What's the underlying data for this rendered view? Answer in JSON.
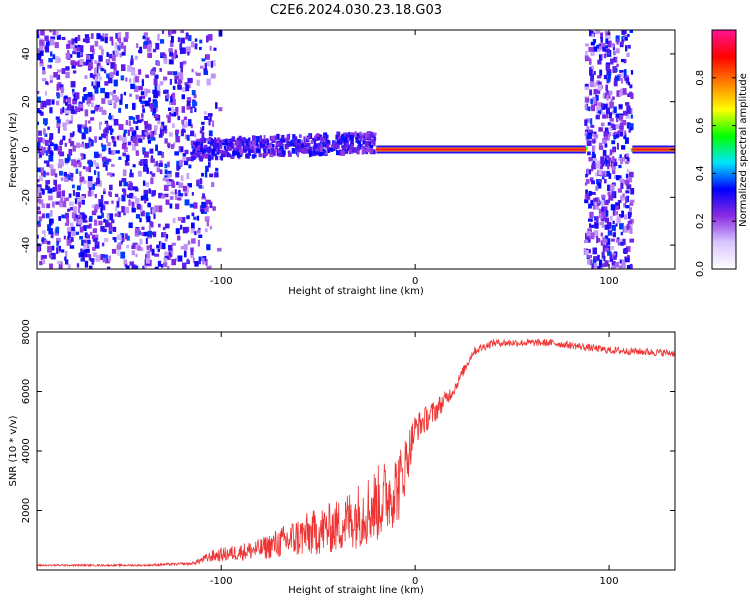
{
  "title": "C2E6.2024.030.23.18.G03",
  "chart_data": [
    {
      "type": "heatmap",
      "xlabel": "Height of straight line (km)",
      "ylabel": "Frequency (Hz)",
      "xlim": [
        -195,
        134
      ],
      "ylim": [
        -50,
        50
      ],
      "xticks": [
        -100,
        0,
        100
      ],
      "yticks": [
        40,
        20,
        0,
        -20,
        -40
      ],
      "grid": false,
      "colorbar": {
        "label": "Normalized spectral amplitude",
        "range": [
          0,
          1
        ],
        "ticks": [
          0.0,
          0.2,
          0.4,
          0.6,
          0.8
        ],
        "colors": [
          "#ffffff",
          "#d9c6ff",
          "#8a2be2",
          "#0000ff",
          "#00e5ff",
          "#00ff00",
          "#ffff00",
          "#ff8000",
          "#ff0000",
          "#ff1493"
        ]
      },
      "features": {
        "noise_region_x": [
          -195,
          -100
        ],
        "noise_band_x": [
          88,
          112
        ],
        "carrier_frequency_hz": 0,
        "carrier_segments": [
          {
            "x0": -115,
            "x1": -20,
            "y_spread": 4,
            "amplitude": 0.35
          },
          {
            "x0": -20,
            "x1": 88,
            "y_spread": 0.5,
            "amplitude": 0.95
          },
          {
            "x0": 112,
            "x1": 134,
            "y_spread": 0.5,
            "amplitude": 0.95
          }
        ]
      }
    },
    {
      "type": "line",
      "xlabel": "Height of straight line (km)",
      "ylabel": "SNR (10 * v/v)",
      "xlim": [
        -195,
        134
      ],
      "ylim": [
        0,
        8000
      ],
      "xticks": [
        -100,
        0,
        100
      ],
      "yticks": [
        8000,
        6000,
        4000,
        2000
      ],
      "color": "#ee3333",
      "grid": false,
      "series_profile": [
        {
          "x": -195,
          "y": 150,
          "noise": 60
        },
        {
          "x": -140,
          "y": 150,
          "noise": 60
        },
        {
          "x": -115,
          "y": 200,
          "noise": 100
        },
        {
          "x": -105,
          "y": 400,
          "noise": 400
        },
        {
          "x": -80,
          "y": 600,
          "noise": 700
        },
        {
          "x": -60,
          "y": 900,
          "noise": 1400
        },
        {
          "x": -40,
          "y": 1200,
          "noise": 1800
        },
        {
          "x": -20,
          "y": 1800,
          "noise": 2600
        },
        {
          "x": -8,
          "y": 2500,
          "noise": 2500
        },
        {
          "x": 0,
          "y": 4600,
          "noise": 1000
        },
        {
          "x": 10,
          "y": 5200,
          "noise": 800
        },
        {
          "x": 20,
          "y": 6000,
          "noise": 400
        },
        {
          "x": 30,
          "y": 7300,
          "noise": 300
        },
        {
          "x": 40,
          "y": 7600,
          "noise": 250
        },
        {
          "x": 70,
          "y": 7600,
          "noise": 250
        },
        {
          "x": 100,
          "y": 7350,
          "noise": 250
        },
        {
          "x": 134,
          "y": 7250,
          "noise": 250
        }
      ]
    }
  ]
}
